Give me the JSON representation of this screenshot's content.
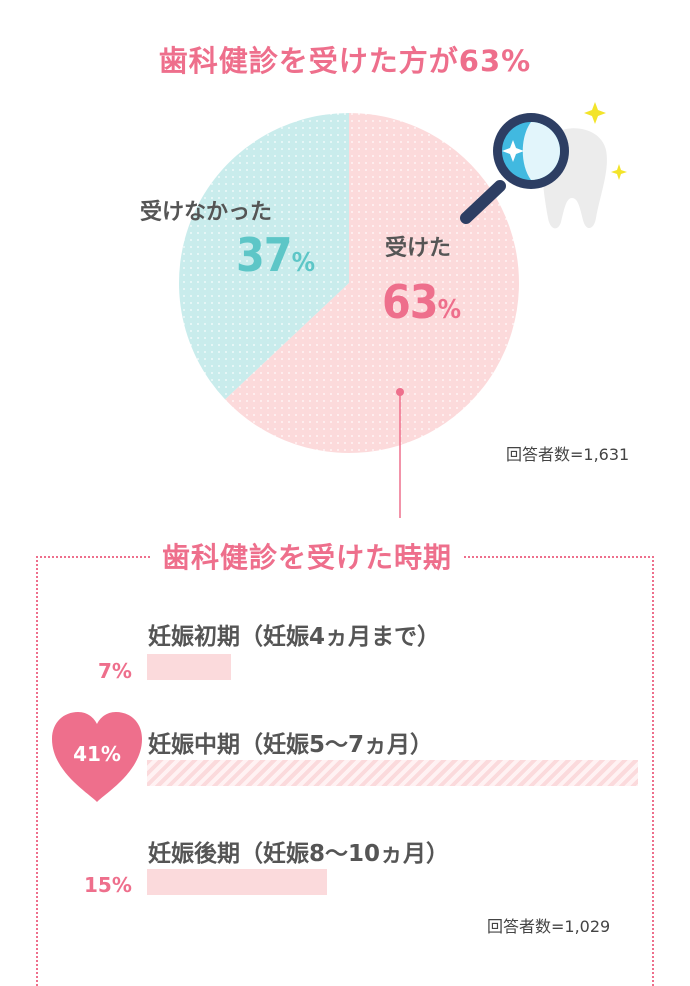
{
  "colors": {
    "pink": "#ee6f8c",
    "teal": "#5dc6c7",
    "pie_pink": "#fcdadb",
    "pie_teal": "#c9ecec",
    "bar_pink": "#fbdadc"
  },
  "chart_data": [
    {
      "type": "pie",
      "title": "歯科健診を受けた方が63%",
      "slices": [
        {
          "label": "受けた",
          "value": 63,
          "value_text": "63",
          "unit": "%",
          "color": "#fcdadb"
        },
        {
          "label": "受けなかった",
          "value": 37,
          "value_text": "37",
          "unit": "%",
          "color": "#c9ecec"
        }
      ],
      "note": "回答者数=1,631"
    },
    {
      "type": "bar",
      "title": "歯科健診を受けた時期",
      "orientation": "horizontal",
      "categories": [
        "妊娠初期（妊娠4ヵ月まで）",
        "妊娠中期（妊娠5〜7ヵ月）",
        "妊娠後期（妊娠8〜10ヵ月）"
      ],
      "values": [
        7,
        41,
        15
      ],
      "value_labels": [
        "7%",
        "41%",
        "15%"
      ],
      "highlight": "妊娠中期（妊娠5〜7ヵ月）",
      "xlim": [
        0,
        41
      ],
      "note": "回答者数=1,029"
    }
  ],
  "icons": [
    "magnifier-icon",
    "tooth-icon",
    "sparkle-icon",
    "heart-icon"
  ]
}
